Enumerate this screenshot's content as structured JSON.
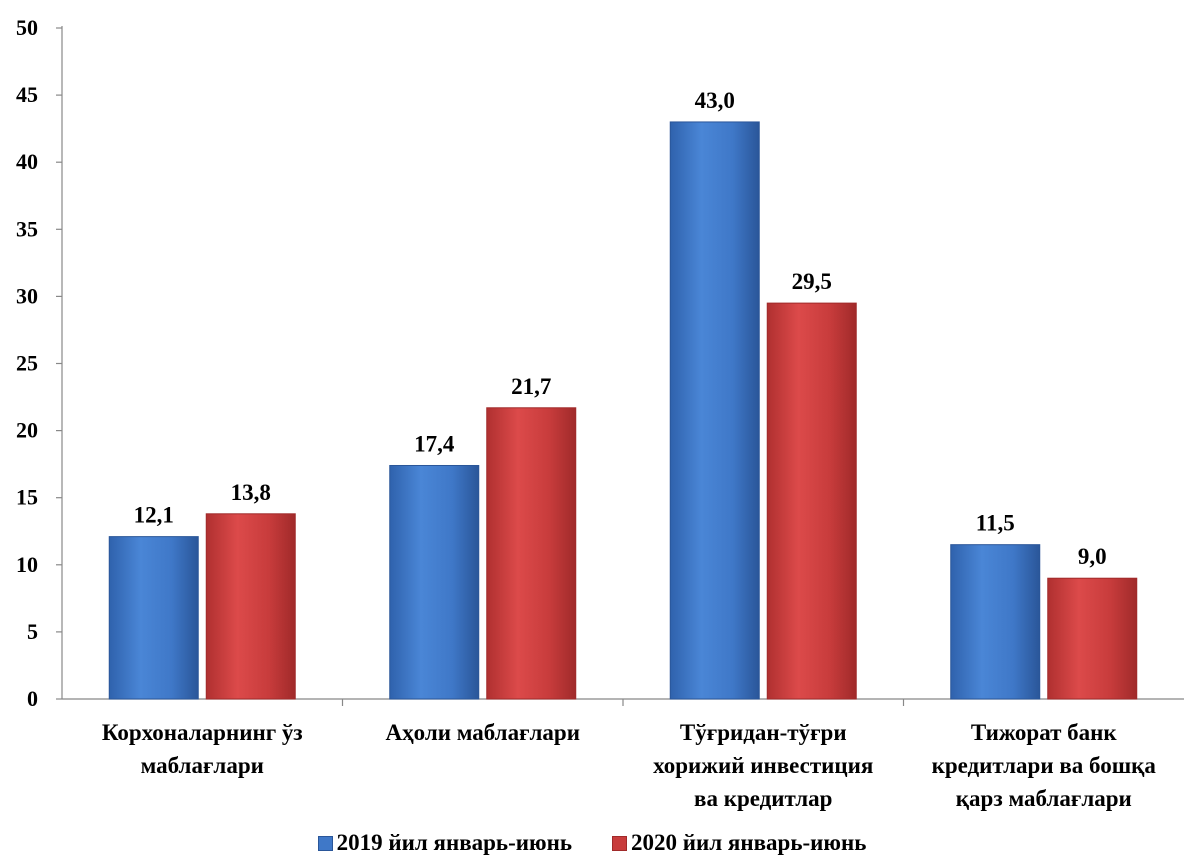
{
  "chart_data": {
    "type": "bar",
    "categories": [
      [
        "Корхоналарнинг ўз",
        "маблағлари"
      ],
      [
        "Аҳоли маблағлари"
      ],
      [
        "Тўғридан-тўғри",
        "хорижий инвестиция",
        "ва кредитлар"
      ],
      [
        "Тижорат банк",
        "кредитлари ва бошқа",
        "қарз маблағлари"
      ]
    ],
    "series": [
      {
        "name": "2019 йил январь-июнь",
        "color": "#3f78c8",
        "values": [
          12.1,
          17.4,
          43.0,
          11.5
        ],
        "labels": [
          "12,1",
          "17,4",
          "43,0",
          "11,5"
        ]
      },
      {
        "name": "2020 йил январь-июнь",
        "color": "#c83c3c",
        "values": [
          13.8,
          21.7,
          29.5,
          9.0
        ],
        "labels": [
          "13,8",
          "21,7",
          "29,5",
          "9,0"
        ]
      }
    ],
    "ylim": [
      0,
      50
    ],
    "yticks": [
      0,
      5,
      10,
      15,
      20,
      25,
      30,
      35,
      40,
      45,
      50
    ],
    "title": "",
    "xlabel": "",
    "ylabel": "",
    "grid": false,
    "legend_position": "bottom"
  }
}
